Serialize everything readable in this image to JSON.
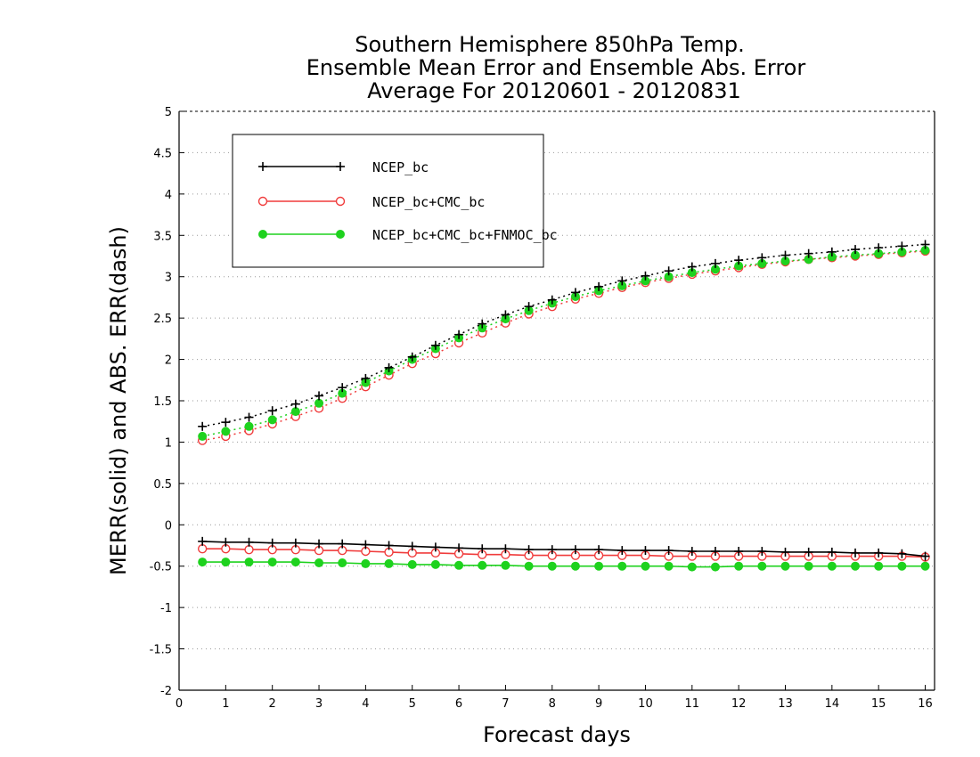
{
  "chart_data": {
    "type": "line",
    "title_lines": [
      "Southern Hemisphere 850hPa Temp.",
      "Ensemble Mean Error and Ensemble Abs. Error",
      "Average For 20120601 - 20120831"
    ],
    "xlabel": "Forecast days",
    "ylabel": "MERR(solid) and ABS. ERR(dash)",
    "xlim": [
      0,
      16.2
    ],
    "ylim": [
      -2,
      5
    ],
    "x_ticks": [
      "0",
      "1",
      "2",
      "3",
      "4",
      "5",
      "6",
      "7",
      "8",
      "9",
      "10",
      "11",
      "12",
      "13",
      "14",
      "15",
      "16"
    ],
    "y_ticks": [
      "5",
      "4.5",
      "4",
      "3.5",
      "3",
      "2.5",
      "2",
      "1.5",
      "1",
      "0.5",
      "0",
      "-0.5",
      "-1",
      "-1.5",
      "-2"
    ],
    "grid": true,
    "legend_position": "top-left",
    "x": [
      0.5,
      1,
      1.5,
      2,
      2.5,
      3,
      3.5,
      4,
      4.5,
      5,
      5.5,
      6,
      6.5,
      7,
      7.5,
      8,
      8.5,
      9,
      9.5,
      10,
      10.5,
      11,
      11.5,
      12,
      12.5,
      13,
      13.5,
      14,
      14.5,
      15,
      15.5,
      16
    ],
    "series": [
      {
        "name": "NCEP_bc",
        "color": "#000000",
        "marker": "plus",
        "abs_err": [
          1.19,
          1.24,
          1.3,
          1.38,
          1.46,
          1.56,
          1.66,
          1.77,
          1.9,
          2.03,
          2.17,
          2.3,
          2.43,
          2.54,
          2.64,
          2.72,
          2.81,
          2.88,
          2.95,
          3.01,
          3.07,
          3.12,
          3.16,
          3.2,
          3.23,
          3.26,
          3.28,
          3.3,
          3.33,
          3.35,
          3.37,
          3.39
        ],
        "merr": [
          -0.2,
          -0.21,
          -0.21,
          -0.22,
          -0.22,
          -0.23,
          -0.23,
          -0.24,
          -0.25,
          -0.26,
          -0.27,
          -0.28,
          -0.29,
          -0.29,
          -0.3,
          -0.3,
          -0.3,
          -0.3,
          -0.31,
          -0.31,
          -0.31,
          -0.32,
          -0.32,
          -0.32,
          -0.32,
          -0.33,
          -0.33,
          -0.33,
          -0.34,
          -0.34,
          -0.35,
          -0.38
        ]
      },
      {
        "name": "NCEP_bc+CMC_bc",
        "color": "#f03c3c",
        "marker": "open-circle",
        "abs_err": [
          1.02,
          1.07,
          1.14,
          1.22,
          1.31,
          1.41,
          1.53,
          1.67,
          1.81,
          1.95,
          2.07,
          2.2,
          2.32,
          2.44,
          2.55,
          2.64,
          2.73,
          2.8,
          2.87,
          2.93,
          2.98,
          3.03,
          3.07,
          3.11,
          3.15,
          3.18,
          3.21,
          3.23,
          3.25,
          3.27,
          3.29,
          3.31
        ],
        "merr": [
          -0.29,
          -0.29,
          -0.3,
          -0.3,
          -0.3,
          -0.31,
          -0.31,
          -0.32,
          -0.33,
          -0.34,
          -0.34,
          -0.35,
          -0.36,
          -0.36,
          -0.37,
          -0.37,
          -0.37,
          -0.37,
          -0.37,
          -0.37,
          -0.38,
          -0.38,
          -0.38,
          -0.38,
          -0.38,
          -0.38,
          -0.38,
          -0.38,
          -0.38,
          -0.38,
          -0.38,
          -0.39
        ]
      },
      {
        "name": "NCEP_bc+CMC_bc+FNMOC_bc",
        "color": "#1ed21e",
        "marker": "filled-circle",
        "abs_err": [
          1.07,
          1.13,
          1.19,
          1.27,
          1.37,
          1.47,
          1.59,
          1.72,
          1.86,
          2.0,
          2.13,
          2.26,
          2.38,
          2.49,
          2.59,
          2.68,
          2.76,
          2.83,
          2.89,
          2.95,
          3.0,
          3.05,
          3.09,
          3.13,
          3.16,
          3.19,
          3.21,
          3.24,
          3.26,
          3.28,
          3.3,
          3.32
        ],
        "merr": [
          -0.45,
          -0.45,
          -0.45,
          -0.45,
          -0.45,
          -0.46,
          -0.46,
          -0.47,
          -0.47,
          -0.48,
          -0.48,
          -0.49,
          -0.49,
          -0.49,
          -0.5,
          -0.5,
          -0.5,
          -0.5,
          -0.5,
          -0.5,
          -0.5,
          -0.51,
          -0.51,
          -0.5,
          -0.5,
          -0.5,
          -0.5,
          -0.5,
          -0.5,
          -0.5,
          -0.5,
          -0.5
        ]
      }
    ]
  }
}
